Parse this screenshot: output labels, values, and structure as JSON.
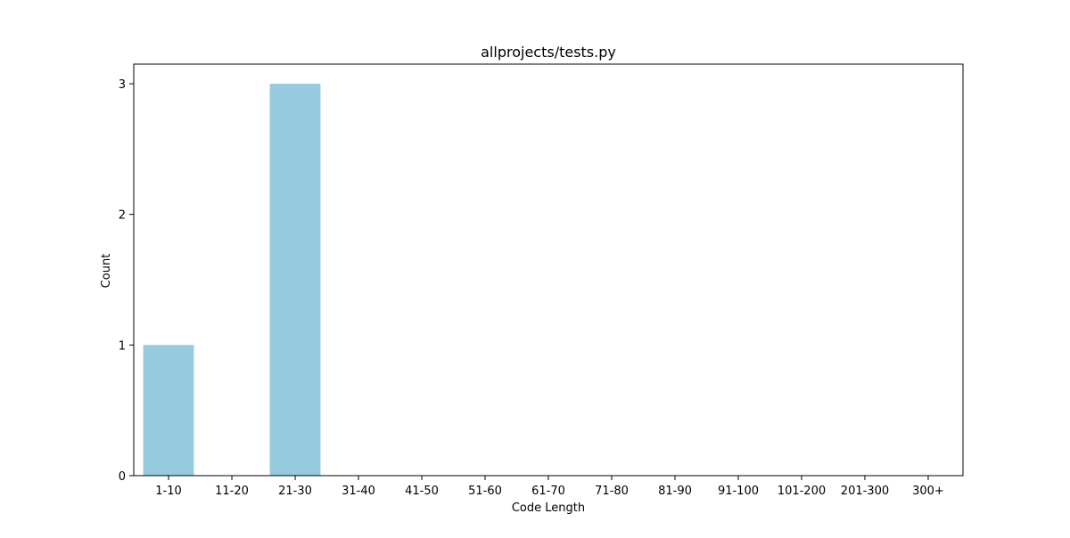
{
  "chart_data": {
    "type": "bar",
    "title": "allprojects/tests.py",
    "xlabel": "Code Length",
    "ylabel": "Count",
    "categories": [
      "1-10",
      "11-20",
      "21-30",
      "31-40",
      "41-50",
      "51-60",
      "61-70",
      "71-80",
      "81-90",
      "91-100",
      "101-200",
      "201-300",
      "300+"
    ],
    "values": [
      1,
      0,
      3,
      0,
      0,
      0,
      0,
      0,
      0,
      0,
      0,
      0,
      0
    ],
    "ylim": [
      0,
      3.15
    ],
    "yticks": [
      "0",
      "1",
      "2",
      "3"
    ],
    "grid": false,
    "legend": "none",
    "bar_color": "#96cade"
  }
}
